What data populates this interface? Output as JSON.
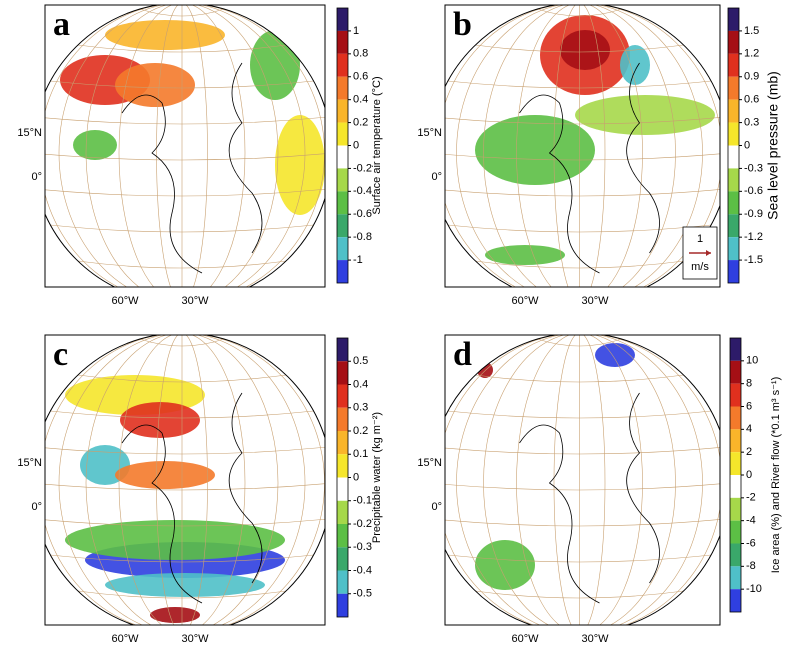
{
  "panels": [
    {
      "label": "a",
      "lon_labels": [
        "60°W",
        "30°W"
      ],
      "lat_labels": [
        "15°N",
        "0°"
      ],
      "colorbar": {
        "title": "Surface air temperature (°C)",
        "ticks": [
          "1",
          "0.8",
          "0.6",
          "0.4",
          "0.2",
          "0",
          "-0.2",
          "-0.4",
          "-0.6",
          "-0.8",
          "-1"
        ],
        "colors": [
          "#2d1b69",
          "#a50f15",
          "#e0301e",
          "#f47a2b",
          "#f9b52a",
          "#f5e62b",
          "#ffffff",
          "#a6d84a",
          "#5cbf45",
          "#3aa86a",
          "#4fc0c8",
          "#2f3fe0"
        ]
      }
    },
    {
      "label": "b",
      "lon_labels": [
        "60°W",
        "30°W"
      ],
      "lat_labels": [
        "15°N",
        "0°"
      ],
      "colorbar": {
        "title": "Sea level pressure (mb)",
        "ticks": [
          "1.5",
          "1.2",
          "0.9",
          "0.6",
          "0.3",
          "0",
          "-0.3",
          "-0.6",
          "-0.9",
          "-1.2",
          "-1.5"
        ],
        "colors": [
          "#2d1b69",
          "#a50f15",
          "#e0301e",
          "#f47a2b",
          "#f9b52a",
          "#f5e62b",
          "#ffffff",
          "#a6d84a",
          "#5cbf45",
          "#3aa86a",
          "#4fc0c8",
          "#2f3fe0"
        ]
      },
      "vector_key": {
        "value": "1",
        "unit": "m/s"
      }
    },
    {
      "label": "c",
      "lon_labels": [
        "60°W",
        "30°W"
      ],
      "lat_labels": [
        "15°N",
        "0°"
      ],
      "colorbar": {
        "title": "Precipitable water (kg m⁻²)",
        "ticks": [
          "0.5",
          "0.4",
          "0.3",
          "0.2",
          "0.1",
          "0",
          "-0.1",
          "-0.2",
          "-0.3",
          "-0.4",
          "-0.5"
        ],
        "colors": [
          "#2d1b69",
          "#a50f15",
          "#e0301e",
          "#f47a2b",
          "#f9b52a",
          "#f5e62b",
          "#ffffff",
          "#a6d84a",
          "#5cbf45",
          "#3aa86a",
          "#4fc0c8",
          "#2f3fe0"
        ]
      }
    },
    {
      "label": "d",
      "lon_labels": [
        "60°W",
        "30°W"
      ],
      "lat_labels": [
        "15°N",
        "0°"
      ],
      "colorbar": {
        "title": "Ice area (%) and River flow (*0.1 m³ s⁻¹)",
        "ticks": [
          "10",
          "8",
          "6",
          "4",
          "2",
          "0",
          "-2",
          "-4",
          "-6",
          "-8",
          "-10"
        ],
        "colors": [
          "#2d1b69",
          "#a50f15",
          "#e0301e",
          "#f47a2b",
          "#f9b52a",
          "#f5e62b",
          "#ffffff",
          "#a6d84a",
          "#5cbf45",
          "#3aa86a",
          "#4fc0c8",
          "#2f3fe0"
        ]
      }
    }
  ]
}
